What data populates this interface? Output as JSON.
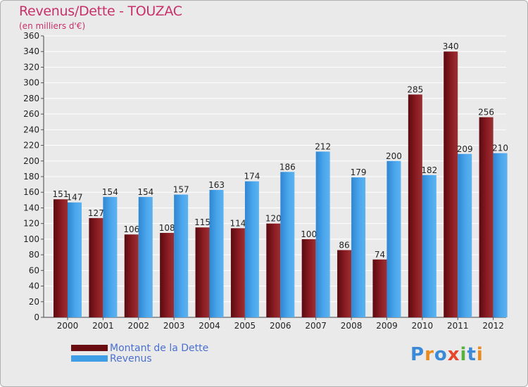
{
  "header": {
    "title": "Revenus/Dette - TOUZAC",
    "subtitle": "(en milliers d'€)"
  },
  "colors": {
    "debt": "#7a1418",
    "revenue": "#3f9ee6",
    "axis_text": "#222222"
  },
  "legend": {
    "items": [
      {
        "label": "Montant de la Dette",
        "color": "#6a0d12"
      },
      {
        "label": "Revenus",
        "color": "#3f9ee6"
      }
    ]
  },
  "logo": {
    "text": "Proxiti",
    "colors": [
      "#3a8ad8",
      "#e98a1e",
      "#3a8ad8",
      "#e7462a",
      "#56b23c",
      "#3a8ad8",
      "#e98a1e"
    ]
  },
  "chart_data": {
    "type": "bar",
    "title": "Revenus/Dette - TOUZAC",
    "subtitle": "(en milliers d'€)",
    "categories": [
      "2000",
      "2001",
      "2002",
      "2003",
      "2004",
      "2005",
      "2006",
      "2007",
      "2008",
      "2009",
      "2010",
      "2011",
      "2012"
    ],
    "series": [
      {
        "name": "Montant de la Dette",
        "values": [
          151,
          127,
          106,
          108,
          115,
          114,
          120,
          100,
          86,
          74,
          285,
          340,
          256
        ]
      },
      {
        "name": "Revenus",
        "values": [
          147,
          154,
          154,
          157,
          163,
          174,
          186,
          212,
          179,
          200,
          182,
          209,
          210
        ]
      }
    ],
    "ylim": [
      0,
      360
    ],
    "ytick_step": 20,
    "grid": true,
    "legend_position": "bottom-left"
  }
}
